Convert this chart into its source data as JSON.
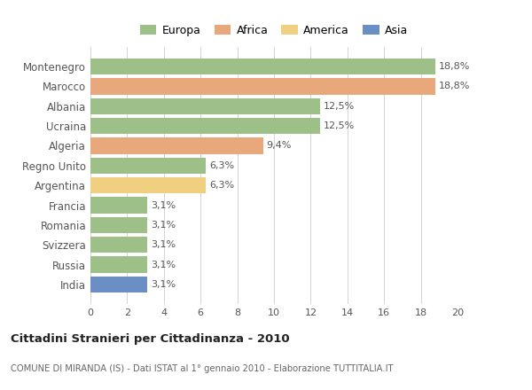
{
  "countries": [
    "Montenegro",
    "Marocco",
    "Albania",
    "Ucraina",
    "Algeria",
    "Regno Unito",
    "Argentina",
    "Francia",
    "Romania",
    "Svizzera",
    "Russia",
    "India"
  ],
  "values": [
    18.8,
    18.8,
    12.5,
    12.5,
    9.4,
    6.3,
    6.3,
    3.1,
    3.1,
    3.1,
    3.1,
    3.1
  ],
  "labels": [
    "18,8%",
    "18,8%",
    "12,5%",
    "12,5%",
    "9,4%",
    "6,3%",
    "6,3%",
    "3,1%",
    "3,1%",
    "3,1%",
    "3,1%",
    "3,1%"
  ],
  "colors": [
    "#9dc088",
    "#e8a87c",
    "#9dc088",
    "#9dc088",
    "#e8a87c",
    "#9dc088",
    "#f0d080",
    "#9dc088",
    "#9dc088",
    "#9dc088",
    "#9dc088",
    "#6b8fc4"
  ],
  "legend_labels": [
    "Europa",
    "Africa",
    "America",
    "Asia"
  ],
  "legend_colors": [
    "#9dc088",
    "#e8a87c",
    "#f0d080",
    "#6b8fc4"
  ],
  "title": "Cittadini Stranieri per Cittadinanza - 2010",
  "subtitle": "COMUNE DI MIRANDA (IS) - Dati ISTAT al 1° gennaio 2010 - Elaborazione TUTTITALIA.IT",
  "xlim": [
    0,
    20
  ],
  "xticks": [
    0,
    2,
    4,
    6,
    8,
    10,
    12,
    14,
    16,
    18,
    20
  ],
  "background_color": "#ffffff",
  "grid_color": "#cccccc",
  "bar_height": 0.82
}
